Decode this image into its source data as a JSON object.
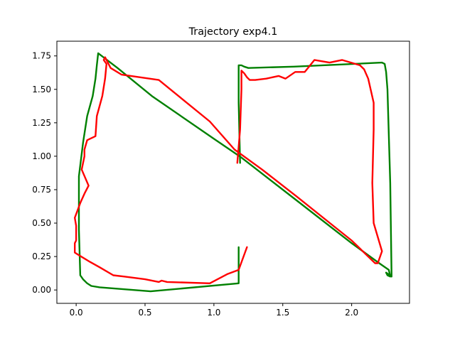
{
  "chart_data": {
    "type": "line",
    "title": "Trajectory exp4.1",
    "xlabel": "",
    "ylabel": "",
    "xlim": [
      -0.14,
      2.42
    ],
    "ylim": [
      -0.1,
      1.86
    ],
    "xticks": [
      0.0,
      0.5,
      1.0,
      1.5,
      2.0
    ],
    "xtick_labels": [
      "0.0",
      "0.5",
      "1.0",
      "1.5",
      "2.0"
    ],
    "yticks": [
      0.0,
      0.25,
      0.5,
      0.75,
      1.0,
      1.25,
      1.5,
      1.75
    ],
    "ytick_labels": [
      "0.00",
      "0.25",
      "0.50",
      "0.75",
      "1.00",
      "1.25",
      "1.50",
      "1.75"
    ],
    "grid": false,
    "series": [
      {
        "color": "#008000",
        "points": [
          [
            1.18,
            0.32
          ],
          [
            1.18,
            0.05
          ],
          [
            0.54,
            -0.01
          ],
          [
            0.17,
            0.02
          ],
          [
            0.11,
            0.03
          ],
          [
            0.08,
            0.05
          ],
          [
            0.05,
            0.08
          ],
          [
            0.03,
            0.11
          ],
          [
            0.02,
            0.45
          ],
          [
            0.02,
            0.85
          ],
          [
            0.05,
            1.1
          ],
          [
            0.08,
            1.3
          ],
          [
            0.12,
            1.45
          ],
          [
            0.14,
            1.58
          ],
          [
            0.15,
            1.68
          ],
          [
            0.16,
            1.77
          ],
          [
            0.3,
            1.66
          ],
          [
            0.55,
            1.45
          ],
          [
            1.0,
            1.13
          ],
          [
            1.2,
            0.99
          ],
          [
            1.6,
            0.67
          ],
          [
            2.0,
            0.35
          ],
          [
            2.2,
            0.2
          ],
          [
            2.27,
            0.15
          ],
          [
            2.28,
            0.1
          ],
          [
            2.26,
            0.11
          ],
          [
            2.25,
            0.13
          ],
          [
            2.29,
            0.1
          ],
          [
            2.28,
            0.8
          ],
          [
            2.26,
            1.5
          ],
          [
            2.25,
            1.63
          ],
          [
            2.24,
            1.69
          ],
          [
            2.22,
            1.7
          ],
          [
            1.58,
            1.67
          ],
          [
            1.25,
            1.66
          ],
          [
            1.22,
            1.67
          ],
          [
            1.2,
            1.68
          ],
          [
            1.18,
            1.68
          ],
          [
            1.18,
            1.4
          ],
          [
            1.19,
            0.95
          ]
        ]
      },
      {
        "color": "#ff0000",
        "points": [
          [
            1.24,
            0.32
          ],
          [
            1.18,
            0.15
          ],
          [
            1.1,
            0.12
          ],
          [
            0.97,
            0.05
          ],
          [
            0.66,
            0.06
          ],
          [
            0.62,
            0.07
          ],
          [
            0.6,
            0.06
          ],
          [
            0.5,
            0.08
          ],
          [
            0.35,
            0.1
          ],
          [
            0.27,
            0.11
          ],
          [
            0.17,
            0.17
          ],
          [
            0.1,
            0.21
          ],
          [
            0.02,
            0.26
          ],
          [
            -0.01,
            0.28
          ],
          [
            -0.01,
            0.35
          ],
          [
            0.0,
            0.37
          ],
          [
            0.0,
            0.48
          ],
          [
            -0.01,
            0.54
          ],
          [
            0.03,
            0.65
          ],
          [
            0.06,
            0.72
          ],
          [
            0.09,
            0.78
          ],
          [
            0.04,
            0.9
          ],
          [
            0.06,
            1.0
          ],
          [
            0.06,
            1.05
          ],
          [
            0.08,
            1.12
          ],
          [
            0.14,
            1.15
          ],
          [
            0.15,
            1.3
          ],
          [
            0.19,
            1.45
          ],
          [
            0.21,
            1.58
          ],
          [
            0.22,
            1.69
          ],
          [
            0.2,
            1.72
          ],
          [
            0.21,
            1.74
          ],
          [
            0.25,
            1.66
          ],
          [
            0.33,
            1.61
          ],
          [
            0.6,
            1.57
          ],
          [
            0.97,
            1.26
          ],
          [
            1.15,
            1.05
          ],
          [
            1.35,
            0.9
          ],
          [
            1.6,
            0.7
          ],
          [
            2.0,
            0.37
          ],
          [
            2.12,
            0.25
          ],
          [
            2.17,
            0.2
          ],
          [
            2.19,
            0.2
          ],
          [
            2.22,
            0.29
          ],
          [
            2.16,
            0.5
          ],
          [
            2.15,
            0.8
          ],
          [
            2.16,
            1.2
          ],
          [
            2.16,
            1.4
          ],
          [
            2.12,
            1.58
          ],
          [
            2.09,
            1.65
          ],
          [
            2.06,
            1.68
          ],
          [
            1.93,
            1.72
          ],
          [
            1.84,
            1.7
          ],
          [
            1.73,
            1.72
          ],
          [
            1.66,
            1.63
          ],
          [
            1.59,
            1.63
          ],
          [
            1.52,
            1.58
          ],
          [
            1.47,
            1.6
          ],
          [
            1.38,
            1.58
          ],
          [
            1.3,
            1.57
          ],
          [
            1.26,
            1.57
          ],
          [
            1.24,
            1.59
          ],
          [
            1.22,
            1.62
          ],
          [
            1.2,
            1.64
          ],
          [
            1.2,
            1.5
          ],
          [
            1.19,
            1.2
          ],
          [
            1.17,
            0.95
          ]
        ]
      }
    ]
  }
}
